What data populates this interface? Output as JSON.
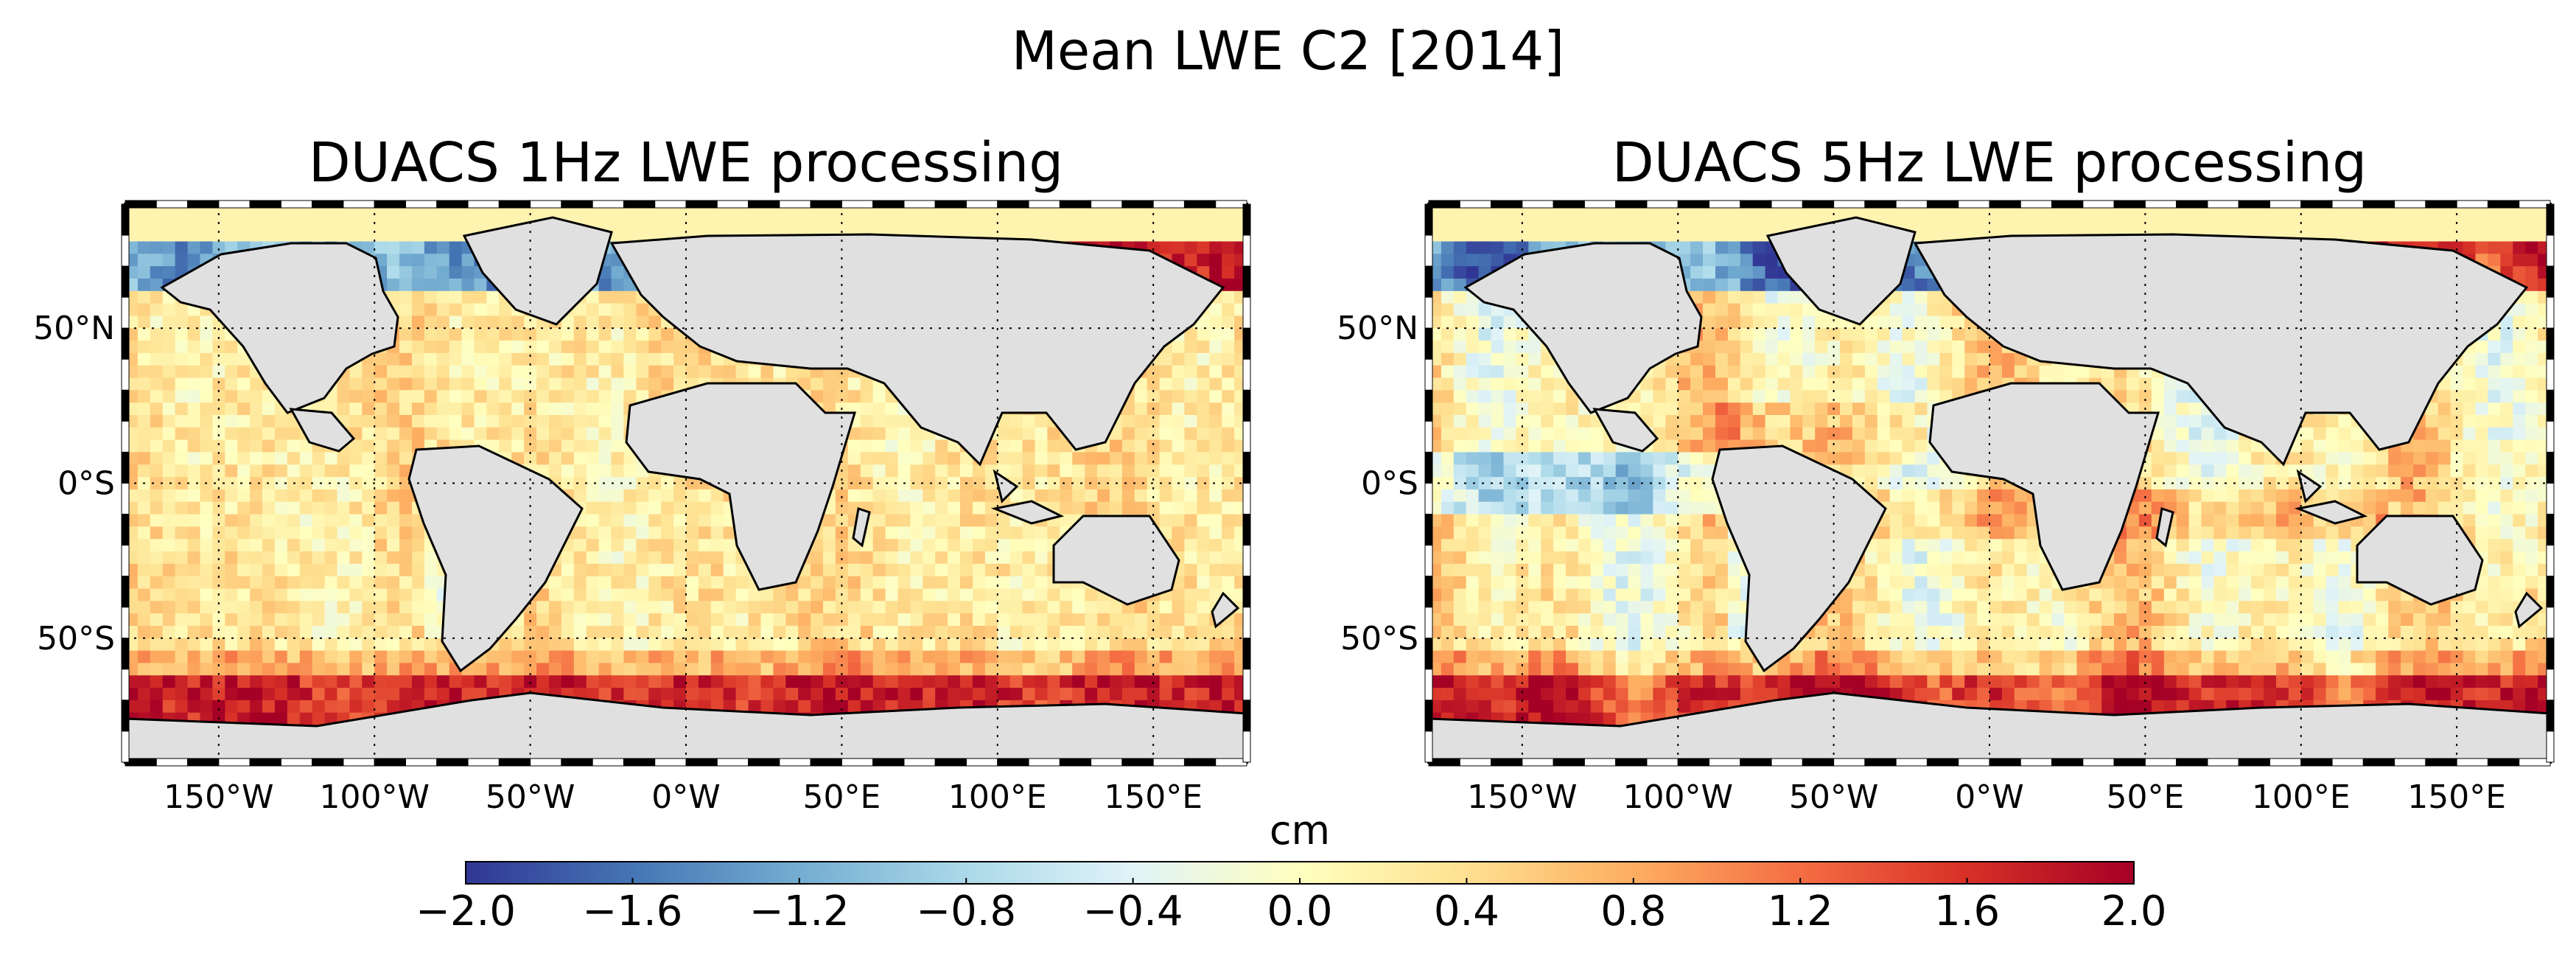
{
  "chart_data": {
    "type": "heatmap",
    "title": "Mean LWE C2 [2014]",
    "variable": "Mean LWE",
    "units": "cm",
    "projection": "cylindrical",
    "lon_range": [
      -180,
      180
    ],
    "lat_range": [
      -90,
      90
    ],
    "x_ticks": [
      {
        "value": -150,
        "label": "150°W"
      },
      {
        "value": -100,
        "label": "100°W"
      },
      {
        "value": -50,
        "label": "50°W"
      },
      {
        "value": 0,
        "label": "0°W"
      },
      {
        "value": 50,
        "label": "50°E"
      },
      {
        "value": 100,
        "label": "100°E"
      },
      {
        "value": 150,
        "label": "150°E"
      }
    ],
    "y_ticks": [
      {
        "value": 50,
        "label": "50°N"
      },
      {
        "value": 0,
        "label": "0°S"
      },
      {
        "value": -50,
        "label": "50°S"
      }
    ],
    "grid": true,
    "panels": [
      {
        "title": "DUACS 1Hz LWE processing",
        "typical_range": [
          0.0,
          0.6
        ]
      },
      {
        "title": "DUACS 5Hz LWE processing",
        "typical_range": [
          -0.6,
          1.0
        ]
      }
    ],
    "colorbar": {
      "label": "cm",
      "min": -2.0,
      "max": 2.0,
      "ticks": [
        -2.0,
        -1.6,
        -1.2,
        -0.8,
        -0.4,
        0.0,
        0.4,
        0.8,
        1.2,
        1.6,
        2.0
      ],
      "tick_labels": [
        "−2.0",
        "−1.6",
        "−1.2",
        "−0.8",
        "−0.4",
        "0.0",
        "0.4",
        "0.8",
        "1.2",
        "1.6",
        "2.0"
      ],
      "colormap": "RdYlBu_r",
      "colors": [
        "#313695",
        "#4575b4",
        "#74add1",
        "#abd9e9",
        "#e0f3f8",
        "#ffffbf",
        "#fee090",
        "#fdae61",
        "#f46d43",
        "#d73027",
        "#a50026"
      ]
    },
    "land_color": "#e0e0e0"
  }
}
